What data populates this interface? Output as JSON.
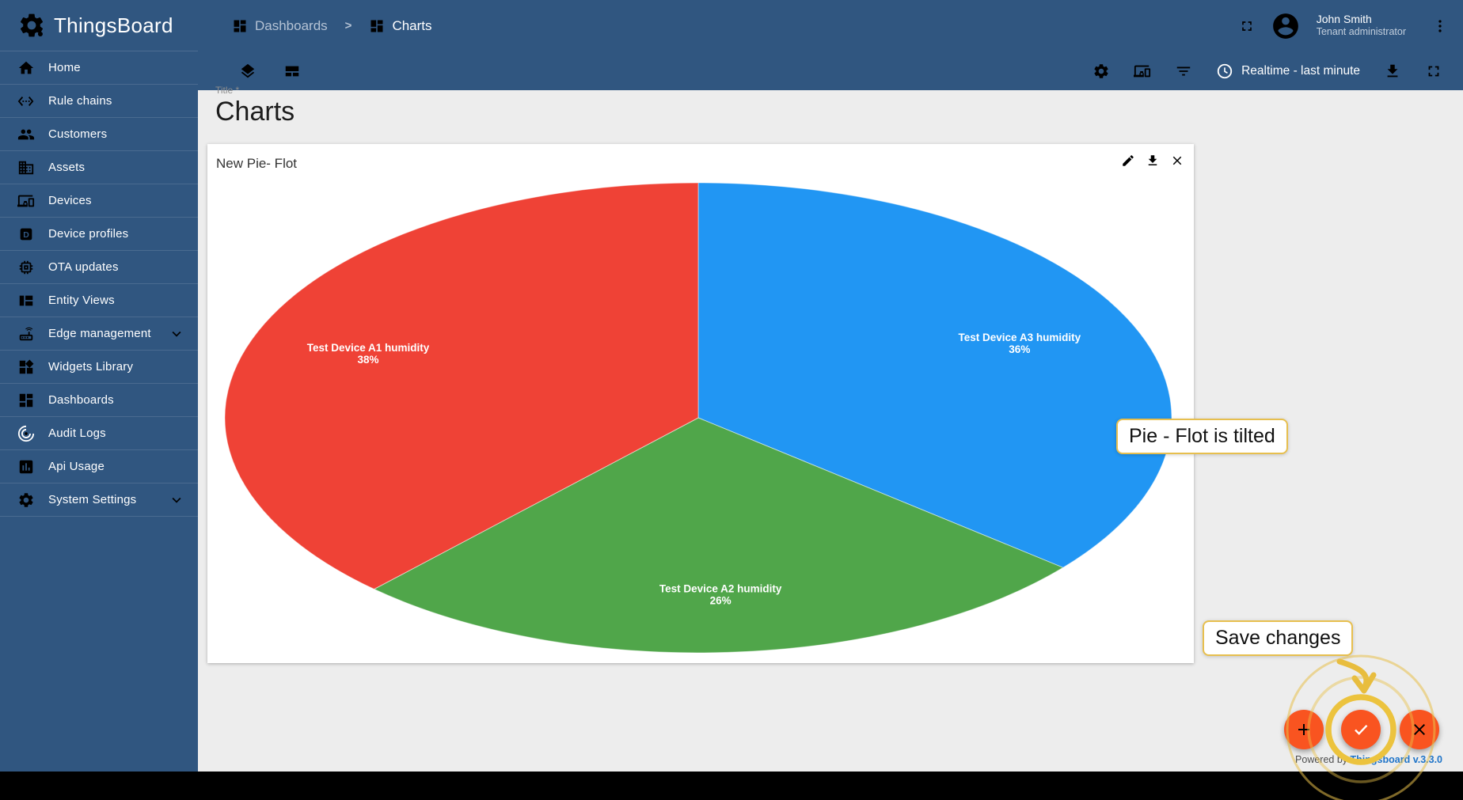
{
  "app": {
    "name": "ThingsBoard",
    "logo_icon": "thingsboard-gear-icon"
  },
  "header": {
    "breadcrumb": {
      "separator": ">",
      "items": [
        {
          "icon": "dashboards-icon",
          "label": "Dashboards"
        },
        {
          "icon": "dashboards-icon",
          "label": "Charts"
        }
      ]
    },
    "action_icons": [
      "fullscreen-icon",
      "more-vert-icon"
    ],
    "user": {
      "name": "John Smith",
      "role": "Tenant administrator",
      "avatar_icon": "account-circle-icon"
    }
  },
  "sidebar": {
    "items": [
      {
        "label": "Home",
        "icon": "home-icon"
      },
      {
        "label": "Rule chains",
        "icon": "rule-chains-icon"
      },
      {
        "label": "Customers",
        "icon": "customers-icon"
      },
      {
        "label": "Assets",
        "icon": "assets-icon"
      },
      {
        "label": "Devices",
        "icon": "devices-icon"
      },
      {
        "label": "Device profiles",
        "icon": "device-profiles-icon"
      },
      {
        "label": "OTA updates",
        "icon": "ota-updates-icon"
      },
      {
        "label": "Entity Views",
        "icon": "entity-views-icon"
      },
      {
        "label": "Edge management",
        "icon": "edge-management-icon",
        "expandable": true
      },
      {
        "label": "Widgets Library",
        "icon": "widgets-library-icon"
      },
      {
        "label": "Dashboards",
        "icon": "dashboards-icon"
      },
      {
        "label": "Audit Logs",
        "icon": "audit-logs-icon"
      },
      {
        "label": "Api Usage",
        "icon": "api-usage-icon"
      },
      {
        "label": "System Settings",
        "icon": "system-settings-icon",
        "expandable": true
      }
    ]
  },
  "dashboard_toolbar": {
    "left_icons": [
      "layers-icon",
      "dashboard-layout-icon"
    ],
    "right_icons": [
      "settings-icon",
      "entity-aliases-icon",
      "filter-icon"
    ],
    "timewindow": {
      "icon": "clock-icon",
      "label": "Realtime - last minute"
    },
    "trailing_icons": [
      "download-icon",
      "fullscreen-icon"
    ]
  },
  "page": {
    "title_field_label": "Title *",
    "title_field_value": "Charts"
  },
  "widget": {
    "title": "New Pie- Flot",
    "action_icons": [
      "edit-icon",
      "download-icon",
      "close-icon"
    ]
  },
  "chart_data": {
    "type": "pie",
    "title": "New Pie- Flot",
    "labels": [
      "Test Device A3 humidity",
      "Test Device A2 humidity",
      "Test Device A1 humidity"
    ],
    "values": [
      36,
      26,
      38
    ],
    "unit": "%",
    "colors": [
      "#2196f3",
      "#50a64a",
      "#ef4236"
    ],
    "legend": "none",
    "labels_inside": true,
    "draw": {
      "start_angle_deg": 90,
      "direction": "clockwise",
      "label_radius_ratio": 0.75,
      "tilt": "ellipse, vertical radius ≈ 0.5 × horizontal"
    }
  },
  "annotations": {
    "tilt_note": "Pie - Flot is tilted",
    "save_note": "Save changes",
    "accent_color": "#e8bd3e"
  },
  "fabs": [
    {
      "icon": "plus-icon"
    },
    {
      "icon": "check-icon",
      "highlighted": true
    },
    {
      "icon": "close-icon"
    }
  ],
  "footer": {
    "powered_by": "Powered by",
    "version_link": "Thingsboard v.3.3.0"
  },
  "colors": {
    "sidebar": "#305680",
    "content_bg": "#ededed",
    "fab": "#f95420",
    "link": "#1f74c8"
  }
}
